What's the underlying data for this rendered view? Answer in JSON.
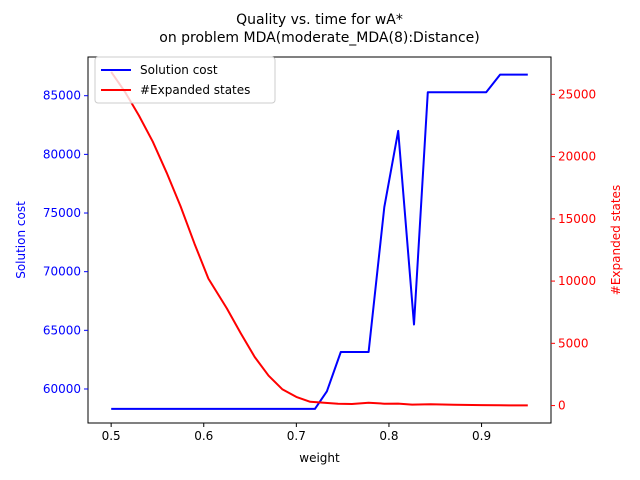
{
  "chart_data": {
    "type": "line",
    "title": "Quality vs. time for wA*\non problem MDA(moderate_MDA(8):Distance)",
    "xlabel": "weight",
    "ylabel_left": "Solution cost",
    "ylabel_right": "#Expanded states",
    "xlim": [
      0.475,
      0.975
    ],
    "ylim_left": [
      57100,
      88300
    ],
    "ylim_right": [
      -1400,
      28000
    ],
    "xticks": [
      0.5,
      0.6,
      0.7,
      0.8,
      0.9
    ],
    "xtick_labels": [
      "0.5",
      "0.6",
      "0.7",
      "0.8",
      "0.9"
    ],
    "yticks_left": [
      60000,
      65000,
      70000,
      75000,
      80000,
      85000
    ],
    "ytick_labels_left": [
      "60000",
      "65000",
      "70000",
      "75000",
      "80000",
      "85000"
    ],
    "yticks_right": [
      0,
      5000,
      10000,
      15000,
      20000,
      25000
    ],
    "ytick_labels_right": [
      "0",
      "5000",
      "10000",
      "15000",
      "20000",
      "25000"
    ],
    "legend_position": "upper-left",
    "series": [
      {
        "name": "Solution cost",
        "axis": "left",
        "color": "#0000ff",
        "x": [
          0.5,
          0.55,
          0.6,
          0.65,
          0.7,
          0.72,
          0.733,
          0.748,
          0.763,
          0.778,
          0.795,
          0.81,
          0.827,
          0.842,
          0.86,
          0.88,
          0.905,
          0.92,
          0.95
        ],
        "y": [
          58300,
          58300,
          58300,
          58300,
          58300,
          58300,
          59800,
          63150,
          63150,
          63150,
          75500,
          82000,
          65500,
          85300,
          85300,
          85300,
          85300,
          86800,
          86800
        ]
      },
      {
        "name": "#Expanded states",
        "axis": "right",
        "color": "#ff0000",
        "x": [
          0.5,
          0.515,
          0.53,
          0.545,
          0.56,
          0.575,
          0.59,
          0.605,
          0.625,
          0.64,
          0.655,
          0.67,
          0.685,
          0.7,
          0.715,
          0.73,
          0.745,
          0.76,
          0.778,
          0.795,
          0.81,
          0.825,
          0.845,
          0.87,
          0.9,
          0.92,
          0.95
        ],
        "y": [
          26800,
          25200,
          23300,
          21200,
          18700,
          16000,
          13000,
          10200,
          7800,
          5800,
          3900,
          2400,
          1300,
          700,
          300,
          220,
          150,
          130,
          230,
          150,
          160,
          80,
          100,
          60,
          40,
          20,
          10
        ]
      }
    ]
  }
}
